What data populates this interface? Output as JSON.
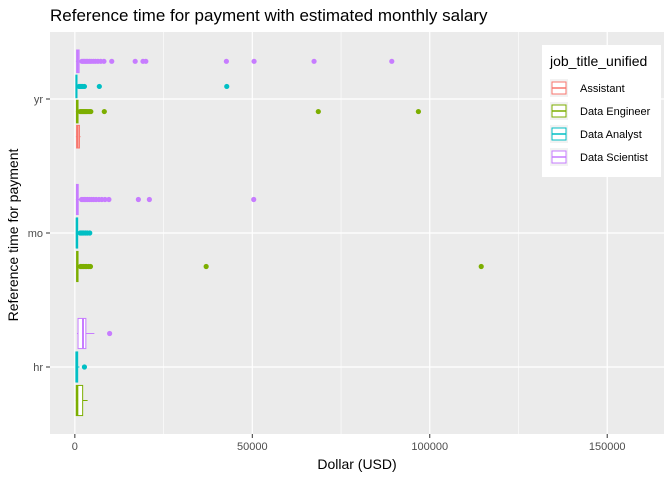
{
  "chart_data": {
    "type": "boxplot",
    "orientation": "horizontal",
    "title": "Reference time for payment with estimated monthly salary",
    "xlabel": "Dollar (USD)",
    "ylabel": "Reference time for payment",
    "xlim": [
      -7000,
      166000
    ],
    "x_ticks": [
      0,
      50000,
      100000,
      150000
    ],
    "x_tick_labels": [
      "0",
      "50000",
      "100000",
      "150000"
    ],
    "categories": [
      "hr",
      "mo",
      "yr"
    ],
    "legend": {
      "title": "job_title_unified",
      "position": "top-right",
      "entries": [
        "Assistant",
        "Data Engineer",
        "Data Analyst",
        "Data Scientist"
      ]
    },
    "colors": {
      "Assistant": "#F8766D",
      "Data Engineer": "#7CAE00",
      "Data Analyst": "#00BFC4",
      "Data Scientist": "#C77CFF"
    },
    "panel_background": "#EBEBEB",
    "grid": true,
    "boxes": [
      {
        "category": "hr",
        "series": "Data Engineer",
        "whisker_low": 300,
        "q1": 400,
        "median": 700,
        "q3": 2200,
        "whisker_high": 3600,
        "outliers": []
      },
      {
        "category": "hr",
        "series": "Data Analyst",
        "whisker_low": 200,
        "q1": 300,
        "median": 450,
        "q3": 800,
        "whisker_high": 1300,
        "outliers": [
          2700
        ]
      },
      {
        "category": "hr",
        "series": "Data Scientist",
        "whisker_low": 600,
        "q1": 900,
        "median": 2300,
        "q3": 3100,
        "whisker_high": 5500,
        "outliers": [
          9800
        ]
      },
      {
        "category": "mo",
        "series": "Data Engineer",
        "whisker_low": 400,
        "q1": 500,
        "median": 700,
        "q3": 900,
        "whisker_high": 1300,
        "outliers": [
          1600,
          2000,
          2400,
          2900,
          3300,
          3900,
          4400,
          37000,
          114500
        ]
      },
      {
        "category": "mo",
        "series": "Data Analyst",
        "whisker_low": 300,
        "q1": 400,
        "median": 550,
        "q3": 800,
        "whisker_high": 1200,
        "outliers": [
          1500,
          1800,
          2100,
          2500,
          3000,
          3500,
          4200
        ]
      },
      {
        "category": "mo",
        "series": "Data Scientist",
        "whisker_low": 300,
        "q1": 450,
        "median": 650,
        "q3": 950,
        "whisker_high": 1500,
        "outliers": [
          1900,
          2300,
          2700,
          3100,
          3600,
          4100,
          4700,
          5300,
          6000,
          6800,
          7600,
          8500,
          9600,
          17900,
          21000,
          50400
        ]
      },
      {
        "category": "yr",
        "series": "Assistant",
        "whisker_low": 300,
        "q1": 500,
        "median": 800,
        "q3": 1300,
        "whisker_high": 1600,
        "outliers": []
      },
      {
        "category": "yr",
        "series": "Data Engineer",
        "whisker_low": 300,
        "q1": 450,
        "median": 650,
        "q3": 900,
        "whisker_high": 1300,
        "outliers": [
          1500,
          1800,
          2100,
          2400,
          2700,
          3000,
          3300,
          3700,
          4100,
          4500,
          8300,
          68600,
          96800
        ]
      },
      {
        "category": "yr",
        "series": "Data Analyst",
        "whisker_low": 200,
        "q1": 300,
        "median": 450,
        "q3": 600,
        "whisker_high": 900,
        "outliers": [
          1200,
          1500,
          1800,
          2200,
          2700,
          6900,
          42800
        ]
      },
      {
        "category": "yr",
        "series": "Data Scientist",
        "whisker_low": 300,
        "q1": 500,
        "median": 800,
        "q3": 1200,
        "whisker_high": 1700,
        "outliers": [
          2000,
          2400,
          2800,
          3200,
          3600,
          4100,
          4600,
          5200,
          5800,
          6500,
          7300,
          8200,
          10400,
          17000,
          19200,
          20000,
          42700,
          50500,
          67400,
          89300
        ]
      }
    ]
  }
}
